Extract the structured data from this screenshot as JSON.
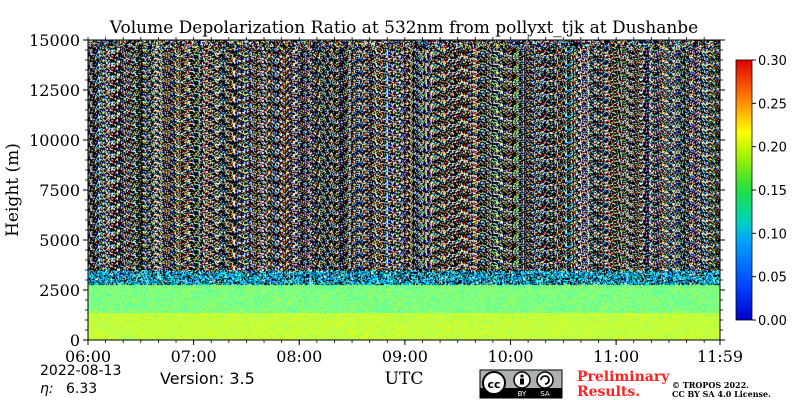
{
  "chart_data": {
    "type": "heatmap",
    "title": "Volume Depolarization Ratio at 532nm from pollyxt_tjk at Dushanbe",
    "xlabel": "UTC",
    "ylabel": "Height (m)",
    "x_ticks": [
      "06:00",
      "07:00",
      "08:00",
      "09:00",
      "10:00",
      "11:00",
      "11:59"
    ],
    "y_ticks": [
      "0",
      "2500",
      "5000",
      "7500",
      "10000",
      "12500",
      "15000"
    ],
    "xlim": [
      "06:00",
      "11:59"
    ],
    "ylim": [
      0,
      15000
    ],
    "colorbar": {
      "ticks": [
        "0.00",
        "0.05",
        "0.10",
        "0.15",
        "0.20",
        "0.25",
        "0.30"
      ],
      "range": [
        0.0,
        0.3
      ],
      "colormap": "jet"
    },
    "layers": [
      {
        "height_range": [
          0,
          1400
        ],
        "dominant_value": 0.17
      },
      {
        "height_range": [
          1400,
          2800
        ],
        "dominant_value": 0.15
      },
      {
        "height_range": [
          2800,
          3500
        ],
        "dominant_value": 0.1
      },
      {
        "height_range": [
          3500,
          15000
        ],
        "dominant_value": "noise (mixed 0.00–0.30)"
      }
    ]
  },
  "footer": {
    "date": "2022-08-13",
    "eta_label": "η:",
    "eta_value": "6.33",
    "version": "Version: 3.5",
    "preliminary_line1": "Preliminary",
    "preliminary_line2": "Results.",
    "copyright_line1": "© TROPOS 2022.",
    "copyright_line2": "CC BY SA 4.0 License.",
    "cc_by": "BY",
    "cc_sa": "SA"
  },
  "colors": {
    "preliminary": "#ff2020",
    "cc_badge_bg": "#aab2ab",
    "cc_badge_text": "#000000"
  },
  "icons": [
    "cc-icon",
    "attribution-icon",
    "share-alike-icon"
  ]
}
